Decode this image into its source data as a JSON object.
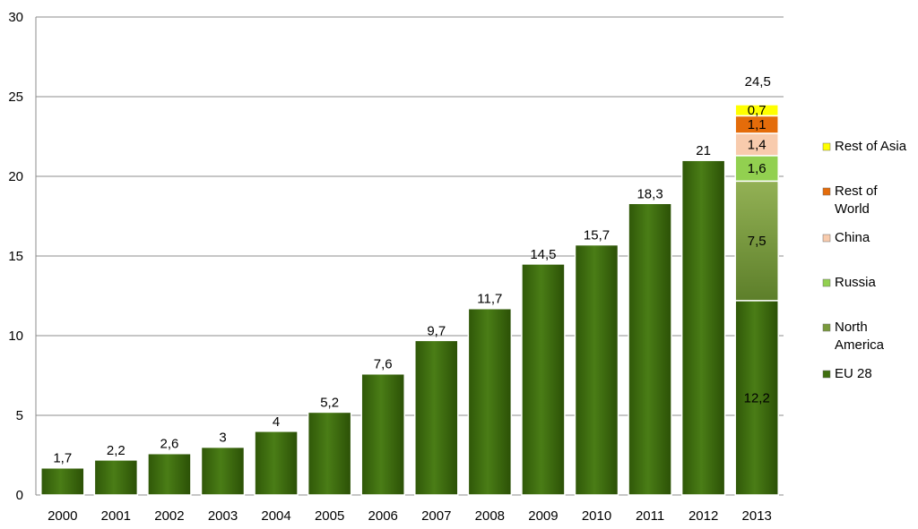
{
  "chart_data": {
    "type": "bar",
    "categories": [
      "2000",
      "2001",
      "2002",
      "2003",
      "2004",
      "2005",
      "2006",
      "2007",
      "2008",
      "2009",
      "2010",
      "2011",
      "2012",
      "2013"
    ],
    "values": [
      1.7,
      2.2,
      2.6,
      3,
      4,
      5.2,
      7.6,
      9.7,
      11.7,
      14.5,
      15.7,
      18.3,
      21,
      24.5
    ],
    "value_labels": [
      "1,7",
      "2,2",
      "2,6",
      "3",
      "4",
      "5,2",
      "7,6",
      "9,7",
      "11,7",
      "14,5",
      "15,7",
      "18,3",
      "21",
      "24,5"
    ],
    "ylim": [
      0,
      30
    ],
    "yticks": [
      0,
      5,
      10,
      15,
      20,
      25,
      30
    ],
    "ytick_labels": [
      "0",
      "5",
      "10",
      "15",
      "20",
      "25",
      "30"
    ],
    "grid": true,
    "legend_position": "right",
    "bar_color": "#3f6f0f",
    "stack_category": "2013",
    "series": [
      {
        "name": "EU 28",
        "value": 12.2,
        "label": "12,2",
        "color": "#3f6f0f"
      },
      {
        "name": "North America",
        "value": 7.5,
        "label": "7,5",
        "color": "#7a9a3c"
      },
      {
        "name": "Russia",
        "value": 1.6,
        "label": "1,6",
        "color": "#92d050"
      },
      {
        "name": "China",
        "value": 1.4,
        "label": "1,4",
        "color": "#f8cbad"
      },
      {
        "name": "Rest of World",
        "value": 1.1,
        "label": "1,1",
        "color": "#e46c0a"
      },
      {
        "name": "Rest of Asia",
        "value": 0.7,
        "label": "0,7",
        "color": "#ffff00"
      }
    ],
    "legend_order": [
      {
        "lines": [
          "Rest of Asia"
        ],
        "series": 5
      },
      {
        "lines": [
          "Rest of",
          "World"
        ],
        "series": 4
      },
      {
        "lines": [
          "China"
        ],
        "series": 3
      },
      {
        "lines": [
          "Russia"
        ],
        "series": 2
      },
      {
        "lines": [
          "North",
          "America"
        ],
        "series": 1
      },
      {
        "lines": [
          "EU 28"
        ],
        "series": 0
      }
    ]
  }
}
